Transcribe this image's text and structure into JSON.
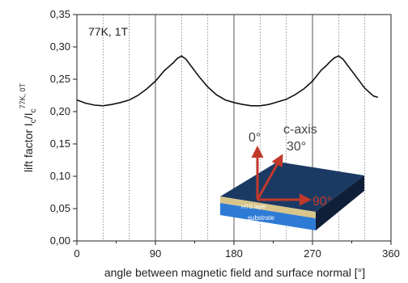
{
  "chart_data": {
    "type": "line",
    "annotation": "77K, 1T",
    "xlabel": "angle between magnetic field and surface normal [°]",
    "ylabel_main": "lift factor I",
    "ylabel_sub1": "c",
    "ylabel_mid": "/I",
    "ylabel_sub2": "c",
    "ylabel_sup": "77K, 0T",
    "xlim": [
      0,
      360
    ],
    "ylim": [
      0.0,
      0.35
    ],
    "xticks": [
      0,
      90,
      180,
      270,
      360
    ],
    "xtick_labels": [
      "0",
      "90",
      "180",
      "270",
      "360"
    ],
    "yticks": [
      0.0,
      0.05,
      0.1,
      0.15,
      0.2,
      0.25,
      0.3,
      0.35
    ],
    "ytick_labels": [
      "0,00",
      "0,05",
      "0,10",
      "0,15",
      "0,20",
      "0,25",
      "0,30",
      "0,35"
    ],
    "major_vlines": [
      90,
      180,
      270
    ],
    "minor_vlines": [
      30,
      60,
      120,
      150,
      210,
      240,
      300,
      330
    ],
    "series": [
      {
        "x": [
          0,
          10,
          20,
          30,
          40,
          50,
          60,
          70,
          80,
          90,
          100,
          105,
          110,
          115,
          120,
          125,
          130,
          140,
          150,
          160,
          170,
          180,
          190,
          200,
          210,
          220,
          230,
          240,
          250,
          260,
          270,
          280,
          285,
          290,
          295,
          300,
          305,
          310,
          320,
          330,
          340,
          345
        ],
        "y": [
          0.218,
          0.213,
          0.21,
          0.209,
          0.211,
          0.214,
          0.218,
          0.225,
          0.235,
          0.247,
          0.263,
          0.269,
          0.275,
          0.282,
          0.286,
          0.281,
          0.272,
          0.254,
          0.238,
          0.226,
          0.218,
          0.214,
          0.211,
          0.209,
          0.209,
          0.211,
          0.215,
          0.219,
          0.226,
          0.235,
          0.247,
          0.264,
          0.27,
          0.277,
          0.283,
          0.286,
          0.281,
          0.272,
          0.254,
          0.236,
          0.224,
          0.222
        ]
      }
    ],
    "inset": {
      "labels": {
        "angle_0": "0°",
        "caxis": "c-axis",
        "angle_30": "30°",
        "angle_90": "90°",
        "hts_layer": "HTS layer",
        "substrate": "substrate"
      },
      "colors": {
        "arrow": "#c0392b",
        "angle_90_text": "#c0392b",
        "slab_top": "#1b3a63",
        "slab_side": "#0f1f38",
        "hts_layer": "#d8c58a",
        "substrate": "#2e7bd6"
      }
    }
  }
}
